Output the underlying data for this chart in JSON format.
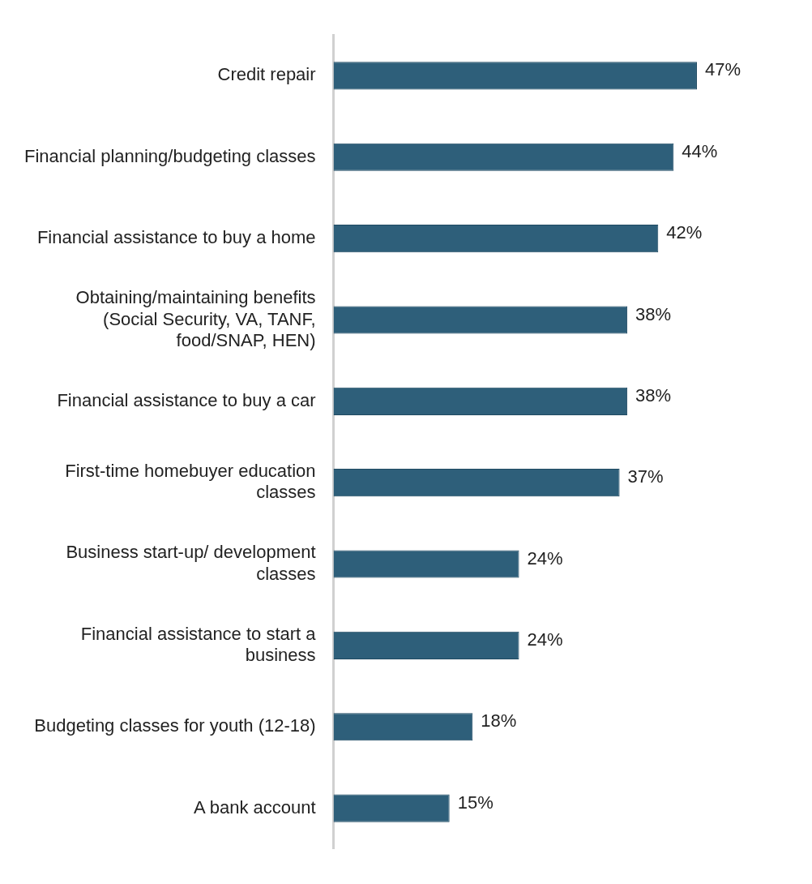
{
  "chart_data": {
    "type": "bar",
    "orientation": "horizontal",
    "categories": [
      "Credit repair",
      "Financial planning/budgeting classes",
      "Financial assistance to buy a home",
      "Obtaining/maintaining benefits (Social Security, VA, TANF, food/SNAP, HEN)",
      "Financial assistance to buy a car",
      "First-time homebuyer education classes",
      "Business start-up/ development classes",
      "Financial assistance to start a business",
      "Budgeting classes for youth (12-18)",
      "A bank account"
    ],
    "values": [
      47,
      44,
      42,
      38,
      38,
      37,
      24,
      24,
      18,
      15
    ],
    "value_labels": [
      "47%",
      "44%",
      "42%",
      "38%",
      "38%",
      "37%",
      "24%",
      "24%",
      "18%",
      "15%"
    ],
    "color": "#2e5f7a",
    "tick_labels": "y"
  }
}
